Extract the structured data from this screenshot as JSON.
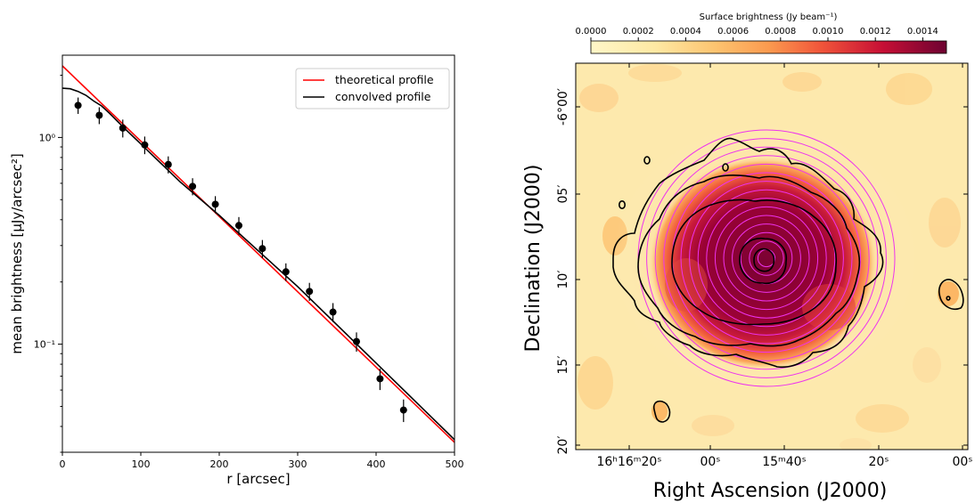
{
  "chart_data": [
    {
      "type": "scatter",
      "scale_y": "log",
      "xlabel": "r [arcsec]",
      "ylabel": "mean brightness [μJy/arcsec²]",
      "xlim": [
        0,
        500
      ],
      "ylim": [
        0.03,
        2.5
      ],
      "x_ticks": [
        "0",
        "100",
        "200",
        "300",
        "400",
        "500"
      ],
      "y_ticks": [
        "10⁻¹",
        "10⁰"
      ],
      "legend_position": "top-right",
      "legend": [
        "theoretical profile",
        "convolved profile"
      ],
      "points": [
        {
          "x": 20,
          "y": 1.43,
          "err": 0.13
        },
        {
          "x": 47,
          "y": 1.28,
          "err": 0.12
        },
        {
          "x": 77,
          "y": 1.11,
          "err": 0.11
        },
        {
          "x": 105,
          "y": 0.92,
          "err": 0.09
        },
        {
          "x": 135,
          "y": 0.74,
          "err": 0.07
        },
        {
          "x": 166,
          "y": 0.58,
          "err": 0.055
        },
        {
          "x": 195,
          "y": 0.475,
          "err": 0.045
        },
        {
          "x": 225,
          "y": 0.375,
          "err": 0.037
        },
        {
          "x": 255,
          "y": 0.29,
          "err": 0.029
        },
        {
          "x": 285,
          "y": 0.224,
          "err": 0.022
        },
        {
          "x": 315,
          "y": 0.18,
          "err": 0.018
        },
        {
          "x": 345,
          "y": 0.143,
          "err": 0.015
        },
        {
          "x": 375,
          "y": 0.103,
          "err": 0.011
        },
        {
          "x": 405,
          "y": 0.068,
          "err": 0.008
        },
        {
          "x": 435,
          "y": 0.048,
          "err": 0.006
        }
      ],
      "series": [
        {
          "name": "theoretical profile",
          "color": "#ff0000",
          "x": [
            0,
            500
          ],
          "y": [
            2.22,
            0.0335
          ]
        },
        {
          "name": "convolved profile",
          "color": "#000000",
          "x": [
            0,
            10,
            20,
            30,
            40,
            50,
            60,
            70,
            80,
            100,
            150,
            200,
            300,
            400,
            500
          ],
          "y": [
            1.73,
            1.72,
            1.67,
            1.6,
            1.5,
            1.42,
            1.31,
            1.2,
            1.1,
            0.93,
            0.61,
            0.42,
            0.19,
            0.081,
            0.0345
          ]
        }
      ]
    },
    {
      "type": "heatmap",
      "colorbar_label": "Surface brightness (Jy beam⁻¹)",
      "colorbar_ticks": [
        "0.0000",
        "0.0002",
        "0.0004",
        "0.0006",
        "0.0008",
        "0.0010",
        "0.0012",
        "0.0014"
      ],
      "colorbar_range": [
        0.0,
        0.0015
      ],
      "colormap": [
        "#fff6c8",
        "#fedc8a",
        "#feb24c",
        "#fd8d3c",
        "#f03b20",
        "#c90a30",
        "#7c0232"
      ],
      "xlabel": "Right Ascension (J2000)",
      "ylabel": "Declination (J2000)",
      "x_ticks": [
        "16ʰ16ᵐ20ˢ",
        "00ˢ",
        "15ᵐ40ˢ",
        "20ˢ",
        "00ˢ"
      ],
      "y_ticks": [
        "-6°00′",
        "05′",
        "10′",
        "15′",
        "20′"
      ],
      "ring_color": "#ee33ee",
      "contour_color": "#000000",
      "ring_count": 15
    }
  ]
}
